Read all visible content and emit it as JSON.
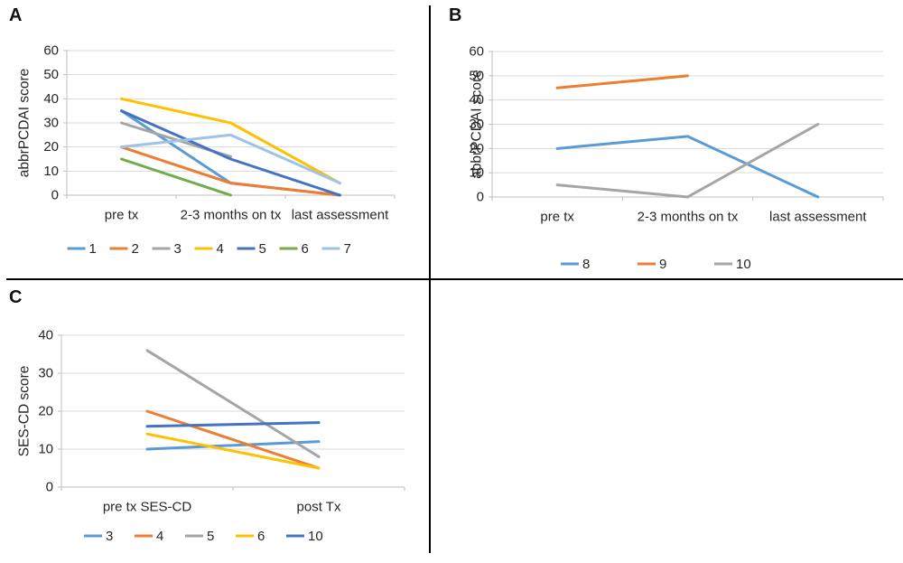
{
  "panels": [
    {
      "label": "A"
    },
    {
      "label": "B"
    },
    {
      "label": "C"
    }
  ],
  "chart_data": [
    {
      "type": "line",
      "title": "",
      "ylabel": "abbrPCDAI score",
      "xlabel": "",
      "categories": [
        "pre tx",
        "2-3 months on tx",
        "last assessment"
      ],
      "ylim": [
        0,
        60
      ],
      "ystep": 10,
      "yticks": [
        "0",
        "10",
        "20",
        "30",
        "40",
        "50",
        "60"
      ],
      "grid": true,
      "legend_position": "bottom",
      "series": [
        {
          "name": "1",
          "color": "#5B9BD5",
          "values": [
            35,
            5,
            0
          ]
        },
        {
          "name": "2",
          "color": "#ED7D31",
          "values": [
            20,
            5,
            0
          ]
        },
        {
          "name": "3",
          "color": "#A5A5A5",
          "values": [
            30,
            16,
            null
          ]
        },
        {
          "name": "4",
          "color": "#FFC000",
          "values": [
            40,
            30,
            5
          ]
        },
        {
          "name": "5",
          "color": "#4472C4",
          "values": [
            35,
            15,
            0
          ]
        },
        {
          "name": "6",
          "color": "#70AD47",
          "values": [
            15,
            0,
            null
          ]
        },
        {
          "name": "7",
          "color": "#9DC3E6",
          "values": [
            20,
            25,
            5
          ]
        }
      ]
    },
    {
      "type": "line",
      "title": "",
      "ylabel": "abbrPCDAI score",
      "xlabel": "",
      "categories": [
        "pre tx",
        "2-3 months on tx",
        "last assessment"
      ],
      "ylim": [
        0,
        60
      ],
      "ystep": 10,
      "yticks": [
        "0",
        "10",
        "20",
        "30",
        "40",
        "50",
        "60"
      ],
      "grid": true,
      "legend_position": "bottom",
      "series": [
        {
          "name": "8",
          "color": "#5B9BD5",
          "values": [
            20,
            25,
            0
          ]
        },
        {
          "name": "9",
          "color": "#ED7D31",
          "values": [
            45,
            50,
            null
          ]
        },
        {
          "name": "10",
          "color": "#A5A5A5",
          "values": [
            5,
            0,
            30
          ]
        }
      ]
    },
    {
      "type": "line",
      "title": "",
      "ylabel": "SES-CD score",
      "xlabel": "",
      "categories": [
        "pre tx SES-CD",
        "post Tx"
      ],
      "ylim": [
        0,
        40
      ],
      "ystep": 10,
      "yticks": [
        "0",
        "10",
        "20",
        "30",
        "40"
      ],
      "grid": true,
      "legend_position": "bottom",
      "series": [
        {
          "name": "3",
          "color": "#5B9BD5",
          "values": [
            10,
            12
          ]
        },
        {
          "name": "4",
          "color": "#ED7D31",
          "values": [
            20,
            5
          ]
        },
        {
          "name": "5",
          "color": "#A5A5A5",
          "values": [
            36,
            8
          ]
        },
        {
          "name": "6",
          "color": "#FFC000",
          "values": [
            14,
            5
          ]
        },
        {
          "name": "10",
          "color": "#4472C4",
          "values": [
            16,
            17
          ]
        }
      ]
    }
  ],
  "style": {
    "gridline_color": "#D9D9D9",
    "axis_color": "#BFBFBF",
    "text_color": "#262626",
    "divider_color": "#000000"
  }
}
